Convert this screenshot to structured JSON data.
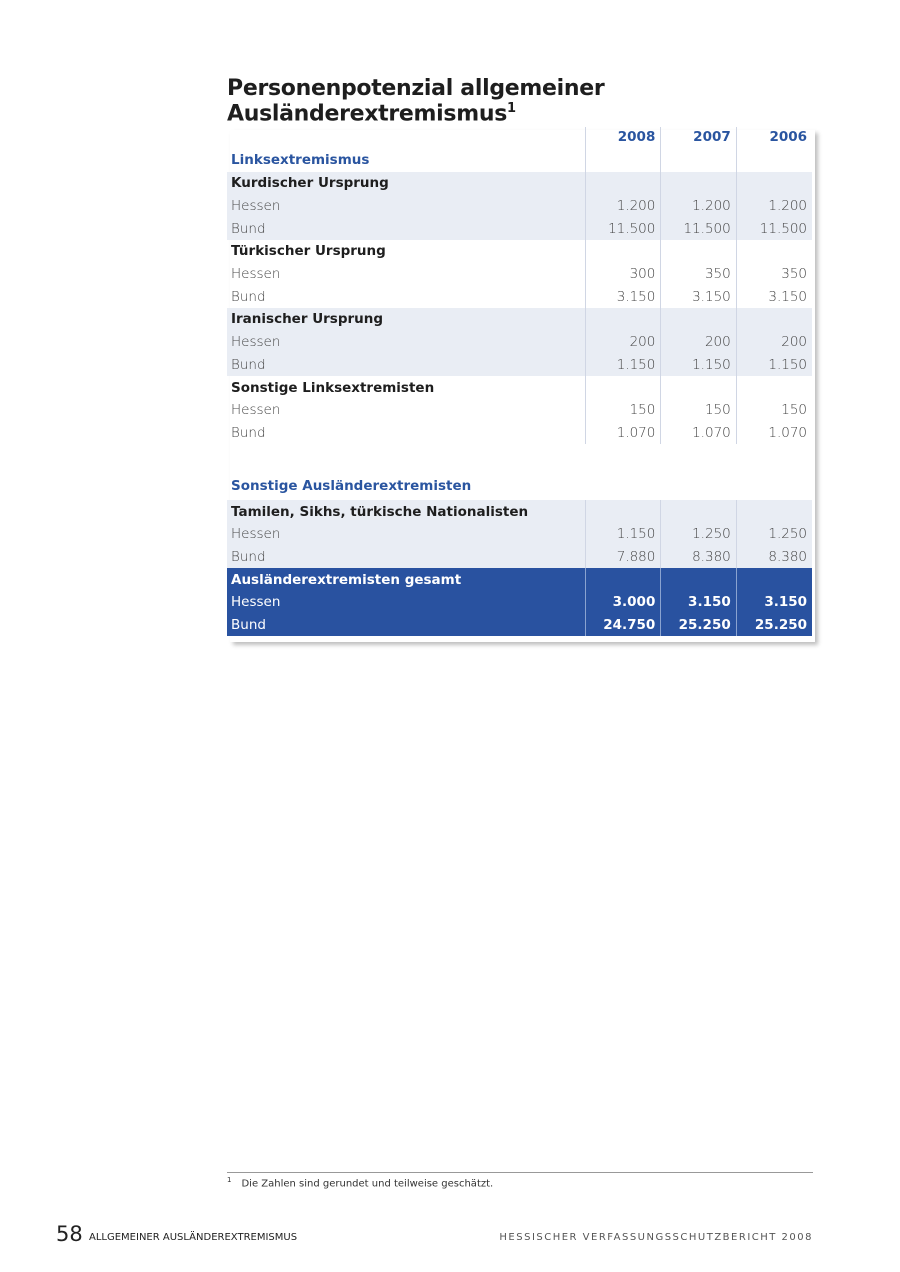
{
  "title": "Personenpotenzial allgemeiner Ausländerextremismus",
  "title_footnote_mark": "1",
  "years": [
    "2008",
    "2007",
    "2006"
  ],
  "sections": [
    {
      "title": "Linksextremismus",
      "groups": [
        {
          "name": "Kurdischer Ursprung",
          "rows": [
            {
              "label": "Hessen",
              "values": [
                "1.200",
                "1.200",
                "1.200"
              ]
            },
            {
              "label": "Bund",
              "values": [
                "11.500",
                "11.500",
                "11.500"
              ]
            }
          ]
        },
        {
          "name": "Türkischer Ursprung",
          "rows": [
            {
              "label": "Hessen",
              "values": [
                "300",
                "350",
                "350"
              ]
            },
            {
              "label": "Bund",
              "values": [
                "3.150",
                "3.150",
                "3.150"
              ]
            }
          ]
        },
        {
          "name": "Iranischer Ursprung",
          "rows": [
            {
              "label": "Hessen",
              "values": [
                "200",
                "200",
                "200"
              ]
            },
            {
              "label": "Bund",
              "values": [
                "1.150",
                "1.150",
                "1.150"
              ]
            }
          ]
        },
        {
          "name": "Sonstige Linksextremisten",
          "rows": [
            {
              "label": "Hessen",
              "values": [
                "150",
                "150",
                "150"
              ]
            },
            {
              "label": "Bund",
              "values": [
                "1.070",
                "1.070",
                "1.070"
              ]
            }
          ]
        }
      ]
    },
    {
      "title": "Sonstige Ausländerextremisten",
      "groups": [
        {
          "name": "Tamilen, Sikhs, türkische Nationalisten",
          "rows": [
            {
              "label": "Hessen",
              "values": [
                "1.150",
                "1.250",
                "1.250"
              ]
            },
            {
              "label": "Bund",
              "values": [
                "7.880",
                "8.380",
                "8.380"
              ]
            }
          ]
        }
      ]
    }
  ],
  "total": {
    "name": "Ausländerextremisten gesamt",
    "rows": [
      {
        "label": "Hessen",
        "values": [
          "3.000",
          "3.150",
          "3.150"
        ]
      },
      {
        "label": "Bund",
        "values": [
          "24.750",
          "25.250",
          "25.250"
        ]
      }
    ]
  },
  "footnote": {
    "mark": "1",
    "text": "Die Zahlen sind gerundet und teilweise geschätzt."
  },
  "footer": {
    "page_number": "58",
    "section": "ALLGEMEINER AUSLÄNDEREXTREMISMUS",
    "publication": "HESSISCHER VERFASSUNGSSCHUTZBERICHT 2008"
  },
  "colors": {
    "accent": "#2952a0",
    "shade": "#e9edf4"
  }
}
